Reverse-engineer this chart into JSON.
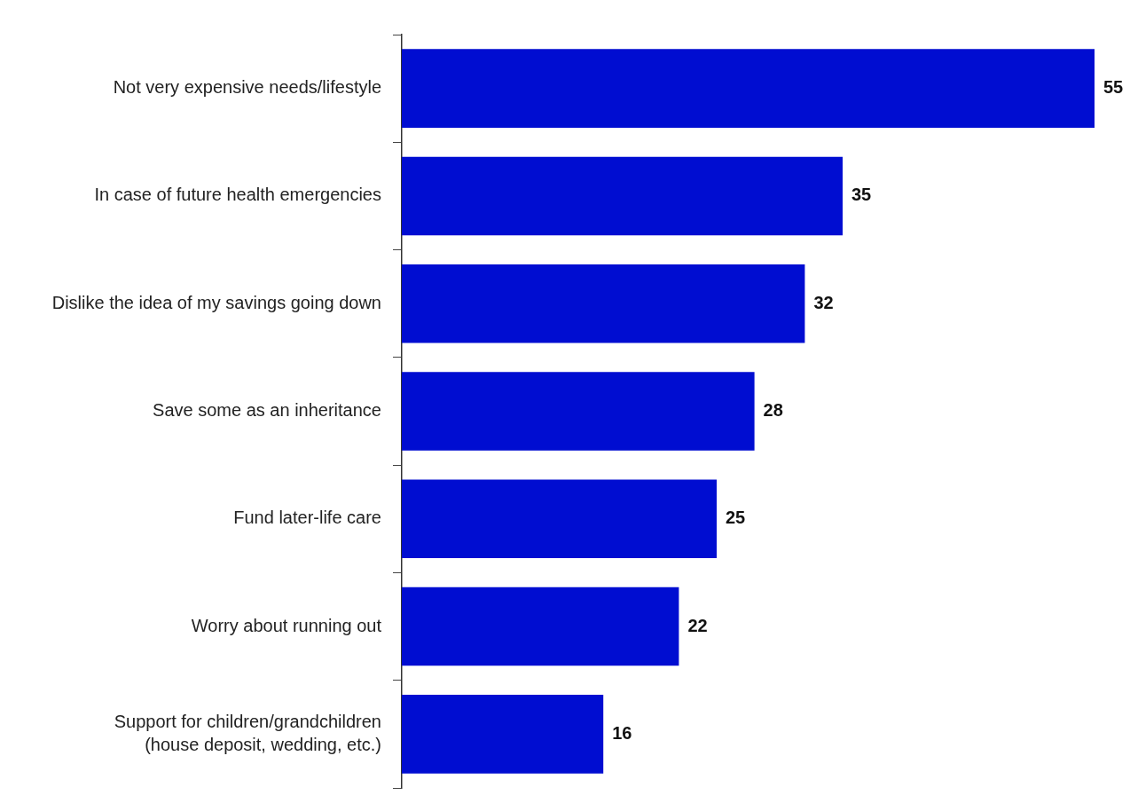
{
  "chart_data": {
    "type": "bar",
    "orientation": "horizontal",
    "categories": [
      "Not very expensive needs/lifestyle",
      "In case of future health emergencies",
      "Dislike the idea of my savings going down",
      "Save some as an inheritance",
      "Fund later-life care",
      "Worry about running out",
      "Support for children/grandchildren\n(house deposit, wedding, etc.)"
    ],
    "values": [
      55,
      35,
      32,
      28,
      25,
      22,
      16
    ],
    "color": "#000dd1",
    "data_labels": true,
    "tick_labels": "y"
  }
}
